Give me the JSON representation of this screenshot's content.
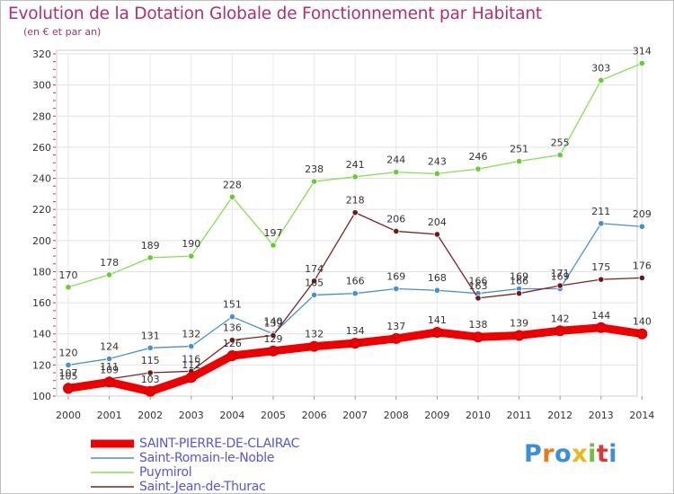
{
  "title": "Evolution de la Dotation Globale de Fonctionnement par Habitant",
  "subtitle": "(en € et par an)",
  "logo_text": "Proxiti",
  "chart_data": {
    "type": "line",
    "title": "Evolution de la Dotation Globale de Fonctionnement par Habitant",
    "subtitle": "(en € et par an)",
    "xlabel": "",
    "ylabel": "",
    "ylim": [
      100,
      320
    ],
    "yticks": [
      100,
      120,
      140,
      160,
      180,
      200,
      220,
      240,
      260,
      280,
      300,
      320
    ],
    "categories": [
      "2000",
      "2001",
      "2002",
      "2003",
      "2004",
      "2005",
      "2006",
      "2007",
      "2008",
      "2009",
      "2010",
      "2011",
      "2012",
      "2013",
      "2014"
    ],
    "grid": true,
    "legend_position": "bottom-left",
    "series": [
      {
        "name": "Puymirol",
        "color": "#88dd55",
        "marker": "#66cc33",
        "values": [
          170,
          178,
          189,
          190,
          228,
          197,
          238,
          241,
          244,
          243,
          246,
          251,
          255,
          303,
          314
        ]
      },
      {
        "name": "Saint-Romain-le-Noble",
        "color": "#4a90c8",
        "marker": "#4a90c8",
        "values": [
          120,
          124,
          131,
          132,
          151,
          140,
          165,
          166,
          169,
          168,
          166,
          169,
          169,
          211,
          209
        ]
      },
      {
        "name": "Saint-Jean-de-Thurac",
        "color": "#7a2222",
        "marker": "#6b1a1a",
        "values": [
          107,
          111,
          115,
          116,
          136,
          139,
          174,
          218,
          206,
          204,
          163,
          166,
          171,
          175,
          176
        ]
      },
      {
        "name": "SAINT-PIERRE-DE-CLAIRAC",
        "color": "#ee0000",
        "marker": "#ee0000",
        "values": [
          105,
          109,
          103,
          112,
          126,
          129,
          132,
          134,
          137,
          141,
          138,
          139,
          142,
          144,
          140
        ]
      }
    ],
    "value_labels": [
      [
        "170",
        "178",
        "189",
        "190",
        "228",
        "197",
        "238",
        "241",
        "244",
        "243",
        "246",
        "251",
        "255",
        "303",
        "314"
      ],
      [
        "120",
        "124",
        "131",
        "132",
        "151",
        "140",
        "165",
        "166",
        "169",
        "168",
        "166",
        "169",
        "169",
        "211",
        "209"
      ],
      [
        "107",
        "111",
        "115",
        "116",
        "136",
        "139",
        "174",
        "218",
        "206",
        "204",
        "163",
        "166",
        "171",
        "175",
        "176"
      ],
      [
        "105",
        "109",
        "103",
        "112",
        "126",
        "129",
        "132",
        "134",
        "137",
        "141",
        "138",
        "139",
        "142",
        "144",
        "140"
      ]
    ]
  },
  "legend": [
    {
      "label": "SAINT-PIERRE-DE-CLAIRAC",
      "color": "#ee0000"
    },
    {
      "label": "Saint-Romain-le-Noble",
      "color": "#4a90c8"
    },
    {
      "label": "Puymirol",
      "color": "#88dd55"
    },
    {
      "label": "Saint-Jean-de-Thurac",
      "color": "#7a2222"
    }
  ]
}
